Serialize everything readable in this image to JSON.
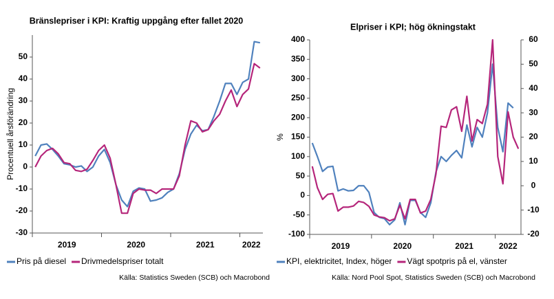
{
  "chart_data": [
    {
      "type": "line",
      "title": "Bränslepriser i KPI: Kraftig uppgång efter fallet 2020",
      "ylabel": "Procentuell årsförändring",
      "source": "Källa: Statistics Sweden (SCB) och Macrobond",
      "categories": [
        "2019",
        null,
        null,
        null,
        null,
        null,
        null,
        null,
        null,
        null,
        null,
        null,
        "2020",
        null,
        null,
        null,
        null,
        null,
        null,
        null,
        null,
        null,
        null,
        null,
        "2021",
        null,
        null,
        null,
        null,
        null,
        null,
        null,
        null,
        null,
        null,
        null,
        "2022",
        null,
        null,
        null
      ],
      "series": [
        {
          "name": "Pris på diesel",
          "color": "#4f81bd",
          "values": [
            5,
            10,
            10.5,
            8,
            5,
            1.5,
            1,
            0,
            0.5,
            -2,
            0,
            5,
            8,
            2,
            -8,
            -15,
            -18,
            -11,
            -9.5,
            -10,
            -15.5,
            -15,
            -14,
            -11.5,
            -10,
            -3,
            8,
            15,
            19,
            16.5,
            17,
            23,
            30,
            38,
            38,
            33,
            38.5,
            40,
            57,
            56.5
          ]
        },
        {
          "name": "Drivmedelspriser totalt",
          "color": "#b5257a",
          "values": [
            0,
            5,
            7.5,
            8.5,
            6,
            2,
            1.5,
            -1.5,
            -2,
            -1,
            3,
            7.5,
            10,
            4,
            -8,
            -21,
            -21,
            -12,
            -10,
            -10.5,
            -10.5,
            -12,
            -10,
            -10,
            -10,
            -4,
            10,
            21,
            20,
            16,
            17,
            21,
            24,
            30,
            35,
            27.5,
            33,
            35.5,
            47,
            45
          ]
        }
      ],
      "ylim": [
        -30,
        60
      ],
      "yticks": [
        -30,
        -20,
        -10,
        0,
        10,
        20,
        30,
        40,
        50
      ]
    },
    {
      "type": "line",
      "title": "Elpriser i KPI; hög ökningstakt",
      "ylabel": "%",
      "source": "Källa: Nord Pool Spot, Statistics Sweden (SCB) och Macrobond",
      "categories": [
        "2019",
        null,
        null,
        null,
        null,
        null,
        null,
        null,
        null,
        null,
        null,
        null,
        "2020",
        null,
        null,
        null,
        null,
        null,
        null,
        null,
        null,
        null,
        null,
        null,
        "2021",
        null,
        null,
        null,
        null,
        null,
        null,
        null,
        null,
        null,
        null,
        null,
        "2022",
        null,
        null,
        null,
        null
      ],
      "series": [
        {
          "name": "KPI, elektricitet, Index, höger",
          "color": "#4f81bd",
          "axis": "y2",
          "values": [
            17.6,
            12,
            5.9,
            7.7,
            8,
            -2.1,
            -1.3,
            -2.1,
            -1.9,
            0,
            0,
            -2.7,
            -11,
            -13,
            -13.5,
            -16,
            -14,
            -7,
            -16,
            -6,
            -6,
            -11,
            -13,
            -7,
            5.6,
            12,
            10,
            12.5,
            14.5,
            11.5,
            25,
            16,
            24,
            20,
            30,
            50,
            24,
            14,
            34,
            32,
            null
          ]
        },
        {
          "name": "Vägt spotpris på el, vänster",
          "color": "#b5257a",
          "values": [
            75,
            20,
            -10,
            3,
            5,
            -40,
            -30,
            -30,
            -27,
            -15,
            -18,
            -28,
            -50,
            -55,
            -57,
            -65,
            -60,
            -25,
            -60,
            -10,
            -10,
            -45,
            -40,
            -10,
            55,
            178,
            175,
            220,
            228,
            165,
            255,
            140,
            195,
            185,
            235,
            400,
            100,
            30,
            215,
            150,
            120
          ]
        }
      ],
      "ylim": [
        -100,
        400
      ],
      "yticks": [
        -100,
        -50,
        0,
        50,
        100,
        150,
        200,
        250,
        300,
        350,
        400
      ],
      "y2lim": [
        -20,
        60
      ],
      "y2ticks": [
        -20,
        -10,
        0,
        10,
        20,
        30,
        40,
        50,
        60
      ]
    }
  ]
}
